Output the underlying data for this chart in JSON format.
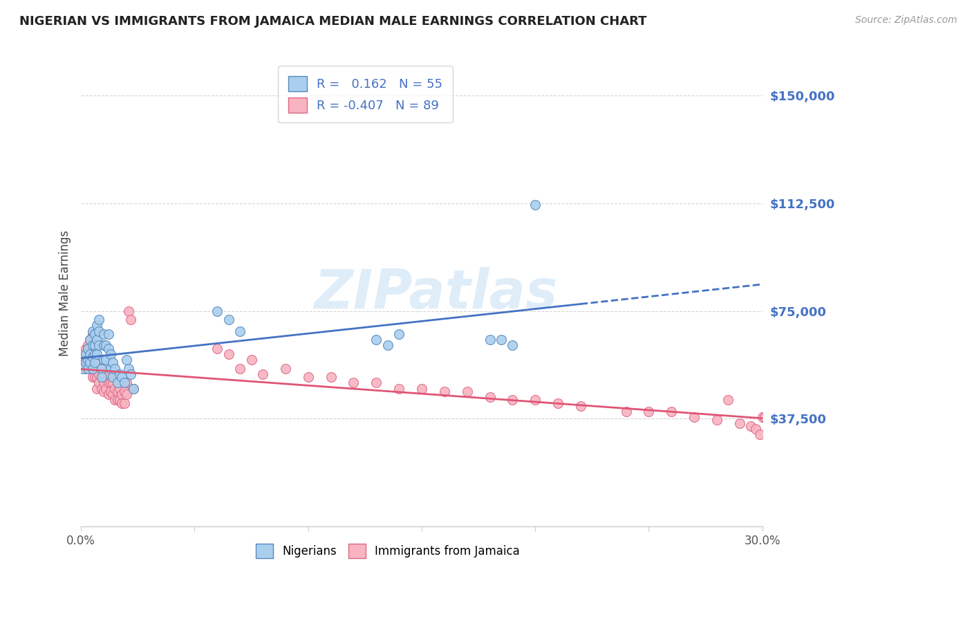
{
  "title": "NIGERIAN VS IMMIGRANTS FROM JAMAICA MEDIAN MALE EARNINGS CORRELATION CHART",
  "source": "Source: ZipAtlas.com",
  "ylabel": "Median Male Earnings",
  "yticks": [
    0,
    37500,
    75000,
    112500,
    150000
  ],
  "ytick_labels": [
    "",
    "$37,500",
    "$75,000",
    "$112,500",
    "$150,000"
  ],
  "ylim": [
    0,
    162500
  ],
  "xlim": [
    0.0,
    0.3
  ],
  "watermark": "ZIPatlas",
  "title_color": "#222222",
  "axis_label_color": "#444444",
  "ytick_color": "#4472c4",
  "grid_color": "#c8c8c8",
  "nigerian_color": "#aacfee",
  "jamaican_color": "#f8b4c0",
  "nigerian_edge": "#5588bb",
  "jamaican_edge": "#dd6688",
  "trendline_nigerian_color": "#4472c4",
  "trendline_jamaican_color": "#e05575",
  "nigerian_x": [
    0.001,
    0.002,
    0.002,
    0.003,
    0.003,
    0.003,
    0.004,
    0.004,
    0.004,
    0.005,
    0.005,
    0.005,
    0.005,
    0.006,
    0.006,
    0.006,
    0.006,
    0.007,
    0.007,
    0.007,
    0.008,
    0.008,
    0.008,
    0.009,
    0.009,
    0.01,
    0.01,
    0.01,
    0.011,
    0.011,
    0.012,
    0.012,
    0.013,
    0.013,
    0.014,
    0.014,
    0.015,
    0.016,
    0.017,
    0.018,
    0.019,
    0.02,
    0.021,
    0.022,
    0.023,
    0.06,
    0.065,
    0.07,
    0.13,
    0.135,
    0.14,
    0.18,
    0.185,
    0.19,
    0.2
  ],
  "nigerian_y": [
    55000,
    57000,
    60000,
    55000,
    62000,
    58000,
    65000,
    60000,
    57000,
    68000,
    63000,
    59000,
    55000,
    67000,
    63000,
    60000,
    57000,
    70000,
    65000,
    60000,
    72000,
    68000,
    63000,
    55000,
    52000,
    67000,
    63000,
    58000,
    63000,
    58000,
    67000,
    62000,
    60000,
    55000,
    57000,
    52000,
    55000,
    50000,
    53000,
    52000,
    50000,
    58000,
    55000,
    53000,
    48000,
    75000,
    72000,
    68000,
    65000,
    63000,
    67000,
    65000,
    65000,
    63000,
    112000
  ],
  "jamaican_x": [
    0.001,
    0.001,
    0.002,
    0.002,
    0.002,
    0.003,
    0.003,
    0.003,
    0.004,
    0.004,
    0.004,
    0.004,
    0.005,
    0.005,
    0.005,
    0.005,
    0.005,
    0.006,
    0.006,
    0.006,
    0.006,
    0.007,
    0.007,
    0.007,
    0.007,
    0.008,
    0.008,
    0.008,
    0.009,
    0.009,
    0.009,
    0.01,
    0.01,
    0.01,
    0.011,
    0.011,
    0.012,
    0.012,
    0.012,
    0.013,
    0.013,
    0.014,
    0.014,
    0.015,
    0.015,
    0.016,
    0.016,
    0.017,
    0.017,
    0.018,
    0.018,
    0.019,
    0.019,
    0.02,
    0.02,
    0.021,
    0.022,
    0.023,
    0.06,
    0.065,
    0.07,
    0.075,
    0.08,
    0.09,
    0.1,
    0.11,
    0.12,
    0.13,
    0.14,
    0.15,
    0.16,
    0.17,
    0.18,
    0.19,
    0.2,
    0.21,
    0.22,
    0.24,
    0.25,
    0.26,
    0.27,
    0.28,
    0.285,
    0.29,
    0.295,
    0.297,
    0.299,
    0.3,
    0.301
  ],
  "jamaican_y": [
    60000,
    57000,
    62000,
    58000,
    55000,
    63000,
    60000,
    57000,
    65000,
    62000,
    58000,
    55000,
    67000,
    63000,
    59000,
    55000,
    52000,
    62000,
    58000,
    55000,
    52000,
    58000,
    55000,
    52000,
    48000,
    57000,
    53000,
    50000,
    55000,
    52000,
    48000,
    53000,
    50000,
    47000,
    52000,
    48000,
    53000,
    50000,
    46000,
    50000,
    47000,
    50000,
    46000,
    48000,
    44000,
    47000,
    44000,
    48000,
    44000,
    46000,
    43000,
    47000,
    43000,
    50000,
    46000,
    75000,
    72000,
    48000,
    62000,
    60000,
    55000,
    58000,
    53000,
    55000,
    52000,
    52000,
    50000,
    50000,
    48000,
    48000,
    47000,
    47000,
    45000,
    44000,
    44000,
    43000,
    42000,
    40000,
    40000,
    40000,
    38000,
    37000,
    44000,
    36000,
    35000,
    34000,
    32000,
    38000,
    38000
  ]
}
